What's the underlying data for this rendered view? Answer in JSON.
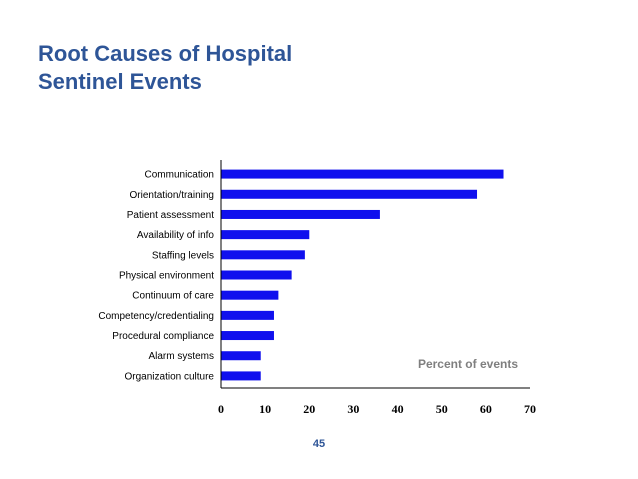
{
  "slide": {
    "title_lines": [
      "Root Causes of Hospital",
      "Sentinel Events"
    ],
    "page_number": "45"
  },
  "colors": {
    "title": "#2e5597",
    "bar": "#1010ee",
    "axis_title": "#7f7f7f",
    "page_number": "#2e5597"
  },
  "chart_data": {
    "type": "bar",
    "orientation": "horizontal",
    "categories": [
      "Communication",
      "Orientation/training",
      "Patient assessment",
      "Availability of info",
      "Staffing levels",
      "Physical environment",
      "Continuum of care",
      "Competency/credentialing",
      "Procedural compliance",
      "Alarm systems",
      "Organization culture"
    ],
    "values": [
      64,
      58,
      36,
      20,
      19,
      16,
      13,
      12,
      12,
      9,
      9
    ],
    "xlabel": "Percent of events",
    "ylabel": "",
    "xlim": [
      0,
      70
    ],
    "xticks": [
      0,
      10,
      20,
      30,
      40,
      50,
      60,
      70
    ],
    "grid": false,
    "legend": "none"
  }
}
